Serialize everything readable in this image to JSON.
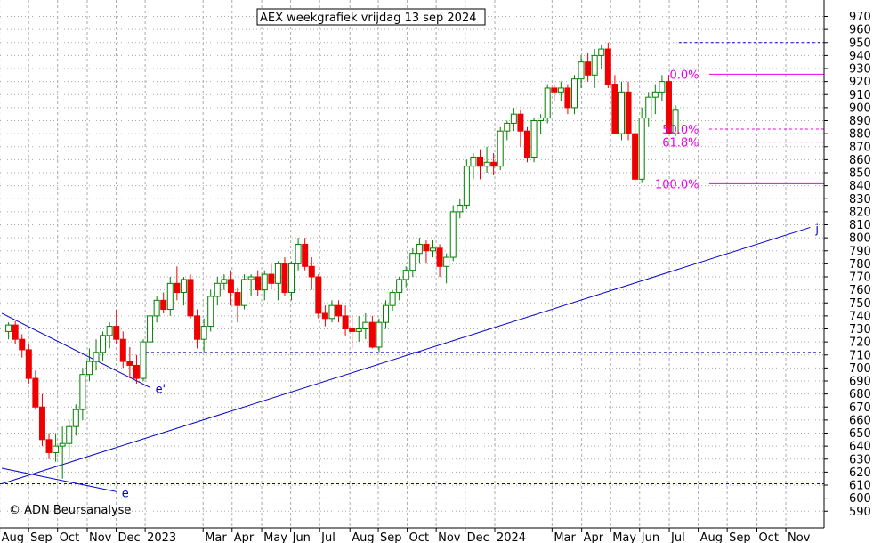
{
  "chart_data": {
    "type": "candlestick",
    "title": "AEX weekgrafiek vrijdag 13 sep 2024",
    "copyright": "© ADN Beursanalyse",
    "colors": {
      "up": "#008000",
      "down": "#ee0000",
      "trendline": "#0000cc",
      "fib": "#ee00ee",
      "grid": "#aaaaaa"
    },
    "ylim": [
      583,
      977
    ],
    "y_ticks": [
      590,
      600,
      610,
      620,
      630,
      640,
      650,
      660,
      670,
      680,
      690,
      700,
      710,
      720,
      730,
      740,
      750,
      760,
      770,
      780,
      790,
      800,
      810,
      820,
      830,
      840,
      850,
      860,
      870,
      880,
      890,
      900,
      910,
      920,
      930,
      940,
      950,
      960,
      970
    ],
    "x_months": [
      "Aug",
      "Sep",
      "Oct",
      "Nov",
      "Dec",
      "2023",
      "Mar",
      "Apr",
      "May",
      "Jun",
      "Jul",
      "Aug",
      "Sep",
      "Oct",
      "Nov",
      "Dec",
      "2024",
      "Mar",
      "Apr",
      "May",
      "Jun",
      "Jul",
      "Aug",
      "Sep",
      "Oct",
      "Nov"
    ],
    "x_month_week": [
      0,
      4.3,
      8.6,
      13,
      17.3,
      21.6,
      30.2,
      34.5,
      38.9,
      43.2,
      47.5,
      52,
      56.2,
      60.5,
      64.8,
      69.1,
      73.5,
      82,
      86.4,
      90.7,
      95,
      99.4,
      103.7,
      108,
      112.4,
      116.7
    ],
    "candles": [
      [
        728,
        735,
        722,
        733
      ],
      [
        733,
        736,
        718,
        722
      ],
      [
        722,
        726,
        708,
        714
      ],
      [
        714,
        718,
        688,
        692
      ],
      [
        692,
        698,
        668,
        670
      ],
      [
        670,
        680,
        640,
        645
      ],
      [
        645,
        650,
        630,
        635
      ],
      [
        635,
        650,
        628,
        640
      ],
      [
        640,
        655,
        615,
        642
      ],
      [
        642,
        660,
        630,
        655
      ],
      [
        655,
        672,
        648,
        668
      ],
      [
        668,
        700,
        660,
        695
      ],
      [
        695,
        715,
        690,
        705
      ],
      [
        705,
        722,
        698,
        712
      ],
      [
        712,
        728,
        705,
        725
      ],
      [
        725,
        735,
        715,
        732
      ],
      [
        732,
        745,
        718,
        722
      ],
      [
        722,
        728,
        700,
        705
      ],
      [
        705,
        716,
        692,
        702
      ],
      [
        702,
        710,
        688,
        692
      ],
      [
        692,
        722,
        690,
        720
      ],
      [
        720,
        745,
        715,
        740
      ],
      [
        740,
        755,
        735,
        752
      ],
      [
        752,
        758,
        742,
        745
      ],
      [
        745,
        770,
        740,
        765
      ],
      [
        765,
        778,
        752,
        758
      ],
      [
        758,
        770,
        748,
        768
      ],
      [
        768,
        772,
        738,
        740
      ],
      [
        740,
        745,
        715,
        722
      ],
      [
        722,
        738,
        712,
        732
      ],
      [
        732,
        760,
        728,
        755
      ],
      [
        755,
        770,
        748,
        765
      ],
      [
        765,
        772,
        760,
        768
      ],
      [
        768,
        775,
        748,
        758
      ],
      [
        758,
        762,
        735,
        748
      ],
      [
        748,
        772,
        745,
        768
      ],
      [
        768,
        772,
        755,
        770
      ],
      [
        770,
        775,
        755,
        760
      ],
      [
        760,
        775,
        752,
        772
      ],
      [
        772,
        780,
        760,
        765
      ],
      [
        765,
        782,
        752,
        780
      ],
      [
        780,
        785,
        755,
        758
      ],
      [
        758,
        782,
        752,
        780
      ],
      [
        780,
        800,
        775,
        795
      ],
      [
        795,
        800,
        775,
        778
      ],
      [
        778,
        785,
        760,
        770
      ],
      [
        770,
        772,
        738,
        742
      ],
      [
        742,
        748,
        732,
        738
      ],
      [
        738,
        752,
        735,
        748
      ],
      [
        748,
        752,
        735,
        740
      ],
      [
        740,
        748,
        725,
        730
      ],
      [
        730,
        740,
        715,
        728
      ],
      [
        728,
        740,
        720,
        730
      ],
      [
        730,
        742,
        722,
        735
      ],
      [
        735,
        740,
        715,
        716
      ],
      [
        716,
        738,
        712,
        735
      ],
      [
        735,
        752,
        730,
        748
      ],
      [
        748,
        760,
        744,
        758
      ],
      [
        758,
        770,
        752,
        768
      ],
      [
        768,
        778,
        762,
        775
      ],
      [
        775,
        792,
        770,
        788
      ],
      [
        788,
        800,
        780,
        795
      ],
      [
        795,
        798,
        780,
        790
      ],
      [
        790,
        798,
        785,
        792
      ],
      [
        792,
        795,
        770,
        778
      ],
      [
        778,
        788,
        765,
        785
      ],
      [
        785,
        825,
        782,
        820
      ],
      [
        820,
        830,
        815,
        825
      ],
      [
        825,
        860,
        822,
        855
      ],
      [
        855,
        865,
        845,
        862
      ],
      [
        862,
        868,
        845,
        855
      ],
      [
        855,
        870,
        850,
        858
      ],
      [
        858,
        865,
        848,
        855
      ],
      [
        855,
        885,
        852,
        882
      ],
      [
        882,
        890,
        875,
        888
      ],
      [
        888,
        900,
        882,
        895
      ],
      [
        895,
        898,
        870,
        882
      ],
      [
        882,
        885,
        858,
        862
      ],
      [
        862,
        892,
        858,
        890
      ],
      [
        890,
        895,
        880,
        892
      ],
      [
        892,
        918,
        888,
        915
      ],
      [
        915,
        918,
        905,
        912
      ],
      [
        912,
        920,
        905,
        915
      ],
      [
        915,
        918,
        895,
        900
      ],
      [
        900,
        925,
        895,
        922
      ],
      [
        922,
        940,
        915,
        935
      ],
      [
        935,
        942,
        920,
        925
      ],
      [
        925,
        945,
        915,
        940
      ],
      [
        940,
        948,
        930,
        945
      ],
      [
        945,
        950,
        915,
        918
      ],
      [
        918,
        925,
        880,
        880
      ],
      [
        880,
        920,
        875,
        912
      ],
      [
        912,
        920,
        875,
        880
      ],
      [
        880,
        890,
        842,
        845
      ],
      [
        845,
        900,
        842,
        892
      ],
      [
        892,
        912,
        885,
        908
      ],
      [
        908,
        918,
        895,
        912
      ],
      [
        912,
        925,
        905,
        920
      ],
      [
        920,
        925,
        880,
        880
      ],
      [
        880,
        902,
        878,
        898
      ]
    ],
    "levels": [
      {
        "value": 950,
        "color": "#0000cc",
        "style": "dashed"
      },
      {
        "value": 712,
        "color": "#0000cc",
        "style": "dashed"
      },
      {
        "value": 611,
        "color": "#0000cc",
        "style": "dashed"
      }
    ],
    "fib_levels": [
      {
        "label": "0.0%",
        "value": 925.6
      },
      {
        "label": "50.0%",
        "value": 883.5
      },
      {
        "label": "61.8%",
        "value": 873.5
      },
      {
        "label": "100.0%",
        "value": 841.5
      }
    ],
    "trendlines": [
      {
        "label": "j",
        "from": [
          -1,
          611
        ],
        "to": [
          119,
          808
        ]
      },
      {
        "label": "e'",
        "from": [
          -1,
          742
        ],
        "to": [
          21,
          685
        ]
      },
      {
        "label": "e",
        "from": [
          -1,
          623
        ],
        "to": [
          16,
          605
        ]
      }
    ]
  }
}
